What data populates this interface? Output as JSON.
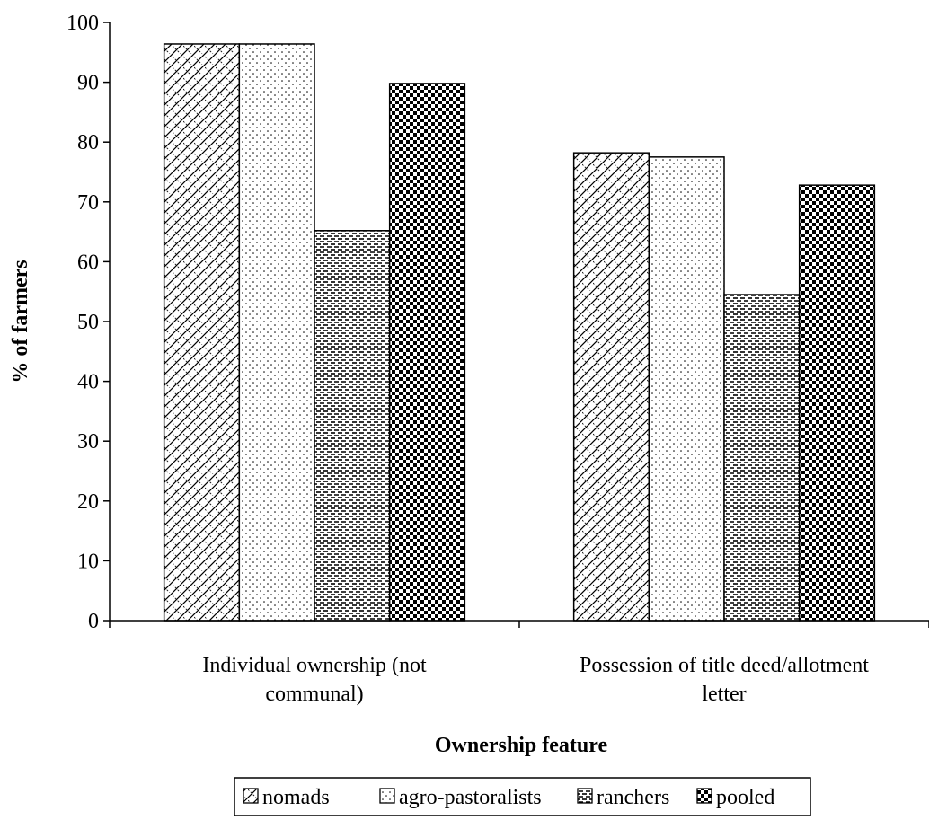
{
  "chart_data": {
    "type": "bar",
    "title": "",
    "xlabel": "Ownership feature",
    "ylabel": "% of farmers",
    "ylim": [
      0,
      100
    ],
    "yticks": [
      0,
      10,
      20,
      30,
      40,
      50,
      60,
      70,
      80,
      90,
      100
    ],
    "grid": false,
    "legend_position": "bottom",
    "categories": [
      [
        "Individual ownership (not",
        "communal)"
      ],
      [
        "Possession of title deed/allotment",
        "letter"
      ]
    ],
    "series": [
      {
        "name": "nomads",
        "values": [
          96.4,
          78.2
        ],
        "pattern": "diagonal-crosshatch"
      },
      {
        "name": "agro-pastoralists",
        "values": [
          96.4,
          77.5
        ],
        "pattern": "dots"
      },
      {
        "name": "ranchers",
        "values": [
          65.2,
          54.5
        ],
        "pattern": "dashed-horizontal"
      },
      {
        "name": "pooled",
        "values": [
          89.8,
          72.8
        ],
        "pattern": "checkerboard"
      }
    ],
    "colors": {
      "ink": "#000000",
      "background": "#ffffff"
    }
  }
}
